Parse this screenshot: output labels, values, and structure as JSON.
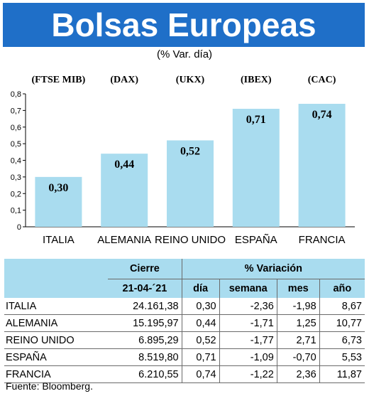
{
  "title": "Bolsas Europeas",
  "subtitle": "(% Var. día)",
  "chart_data": {
    "type": "bar",
    "indices": [
      "(FTSE MIB)",
      "(DAX)",
      "(UKX)",
      "(IBEX)",
      "(CAC)"
    ],
    "categories": [
      "ITALIA",
      "ALEMANIA",
      "REINO UNIDO",
      "ESPAÑA",
      "FRANCIA"
    ],
    "values": [
      0.3,
      0.44,
      0.52,
      0.71,
      0.74
    ],
    "value_labels": [
      "0,30",
      "0,44",
      "0,52",
      "0,71",
      "0,74"
    ],
    "yticks": [
      "0",
      "0,1",
      "0,2",
      "0,3",
      "0,4",
      "0,5",
      "0,6",
      "0,7",
      "0,8"
    ],
    "ylim": [
      0,
      0.8
    ],
    "bar_color": "#a9dcef"
  },
  "table": {
    "header_cierre": "Cierre",
    "header_variacion": "% Variación",
    "date": "21-04-´21",
    "columns": [
      "día",
      "semana",
      "mes",
      "año"
    ],
    "rows": [
      {
        "name": "ITALIA",
        "cierre": "24.161,38",
        "dia": "0,30",
        "semana": "-2,36",
        "mes": "-1,98",
        "ano": "8,67"
      },
      {
        "name": "ALEMANIA",
        "cierre": "15.195,97",
        "dia": "0,44",
        "semana": "-1,71",
        "mes": "1,25",
        "ano": "10,77"
      },
      {
        "name": "REINO UNIDO",
        "cierre": "6.895,29",
        "dia": "0,52",
        "semana": "-1,77",
        "mes": "2,71",
        "ano": "6,73"
      },
      {
        "name": "ESPAÑA",
        "cierre": "8.519,80",
        "dia": "0,71",
        "semana": "-1,09",
        "mes": "-0,70",
        "ano": "5,53"
      },
      {
        "name": "FRANCIA",
        "cierre": "6.210,55",
        "dia": "0,74",
        "semana": "-1,22",
        "mes": "2,36",
        "ano": "11,87"
      }
    ]
  },
  "source": "Fuente: Bloomberg.",
  "colors": {
    "title_bg": "#1f6fc8",
    "accent": "#a9dcef"
  }
}
